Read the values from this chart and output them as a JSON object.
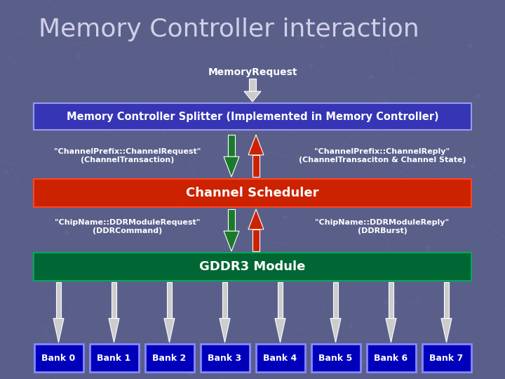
{
  "title": "Memory Controller interaction",
  "bg_color": "#5a5f8a",
  "title_color": "#d0d0e8",
  "title_fontsize": 26,
  "memory_request_label": "MemoryRequest",
  "splitter_label": "Memory Controller Splitter (Implemented in Memory Controller)",
  "channel_scheduler_label": "Channel Scheduler",
  "gddr3_label": "GDDR3 Module",
  "bank_labels": [
    "Bank 0",
    "Bank 1",
    "Bank 2",
    "Bank 3",
    "Bank 4",
    "Bank 5",
    "Bank 6",
    "Bank 7"
  ],
  "left_label_top": "\"ChannelPrefix::ChannelRequest\"\n(ChannelTransaction)",
  "right_label_top": "\"ChannelPrefix::ChannelReply\"\n(ChannelTransaciton & Channel State)",
  "left_label_bot": "\"ChipName::DDRModuleRequest\"\n(DDRCommand)",
  "right_label_bot": "\"ChipName::DDRModuleReply\"\n(DDRBurst)",
  "splitter_bg": "#3535b5",
  "splitter_border": "#9999ee",
  "scheduler_bg": "#cc2200",
  "scheduler_border": "#ff4422",
  "gddr3_bg": "#006633",
  "gddr3_border": "#00aa55",
  "bank_bg": "#0000bb",
  "bank_border": "#8888ff",
  "arrow_light": "#cccccc",
  "green_arrow": "#1a7a2a",
  "red_arrow": "#cc2200"
}
